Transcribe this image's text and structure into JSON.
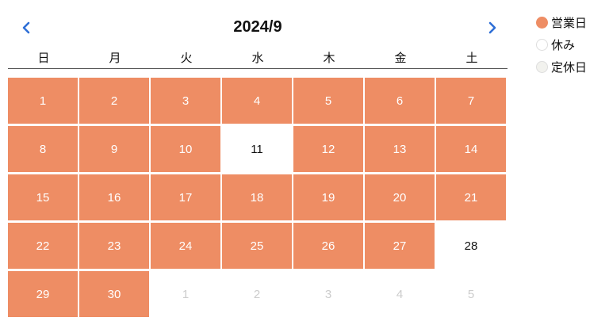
{
  "calendar": {
    "title": "2024/9",
    "weekdays": [
      "日",
      "月",
      "火",
      "水",
      "木",
      "金",
      "土"
    ],
    "days": [
      {
        "label": "1",
        "status": "open"
      },
      {
        "label": "2",
        "status": "open"
      },
      {
        "label": "3",
        "status": "open"
      },
      {
        "label": "4",
        "status": "open"
      },
      {
        "label": "5",
        "status": "open"
      },
      {
        "label": "6",
        "status": "open"
      },
      {
        "label": "7",
        "status": "open"
      },
      {
        "label": "8",
        "status": "open"
      },
      {
        "label": "9",
        "status": "open"
      },
      {
        "label": "10",
        "status": "open"
      },
      {
        "label": "11",
        "status": "rest"
      },
      {
        "label": "12",
        "status": "open"
      },
      {
        "label": "13",
        "status": "open"
      },
      {
        "label": "14",
        "status": "open"
      },
      {
        "label": "15",
        "status": "open"
      },
      {
        "label": "16",
        "status": "open"
      },
      {
        "label": "17",
        "status": "open"
      },
      {
        "label": "18",
        "status": "open"
      },
      {
        "label": "19",
        "status": "open"
      },
      {
        "label": "20",
        "status": "open"
      },
      {
        "label": "21",
        "status": "open"
      },
      {
        "label": "22",
        "status": "open"
      },
      {
        "label": "23",
        "status": "open"
      },
      {
        "label": "24",
        "status": "open"
      },
      {
        "label": "25",
        "status": "open"
      },
      {
        "label": "26",
        "status": "open"
      },
      {
        "label": "27",
        "status": "open"
      },
      {
        "label": "28",
        "status": "rest"
      },
      {
        "label": "29",
        "status": "open"
      },
      {
        "label": "30",
        "status": "open"
      },
      {
        "label": "1",
        "status": "other"
      },
      {
        "label": "2",
        "status": "other"
      },
      {
        "label": "3",
        "status": "other"
      },
      {
        "label": "4",
        "status": "other"
      },
      {
        "label": "5",
        "status": "other"
      }
    ],
    "prev_icon": "chevron-left-icon",
    "next_icon": "chevron-right-icon",
    "nav_color": "#2f6fd6"
  },
  "legend": {
    "items": [
      {
        "label": "営業日",
        "color": "#ee8d64",
        "border": "#ee8d64"
      },
      {
        "label": "休み",
        "color": "#ffffff",
        "border": "#dddddd"
      },
      {
        "label": "定休日",
        "color": "#f2f2ee",
        "border": "#dddddd"
      }
    ]
  },
  "colors": {
    "open_day": "#ee8d64",
    "rest_day": "#ffffff",
    "other_month_text": "#cccccc"
  }
}
